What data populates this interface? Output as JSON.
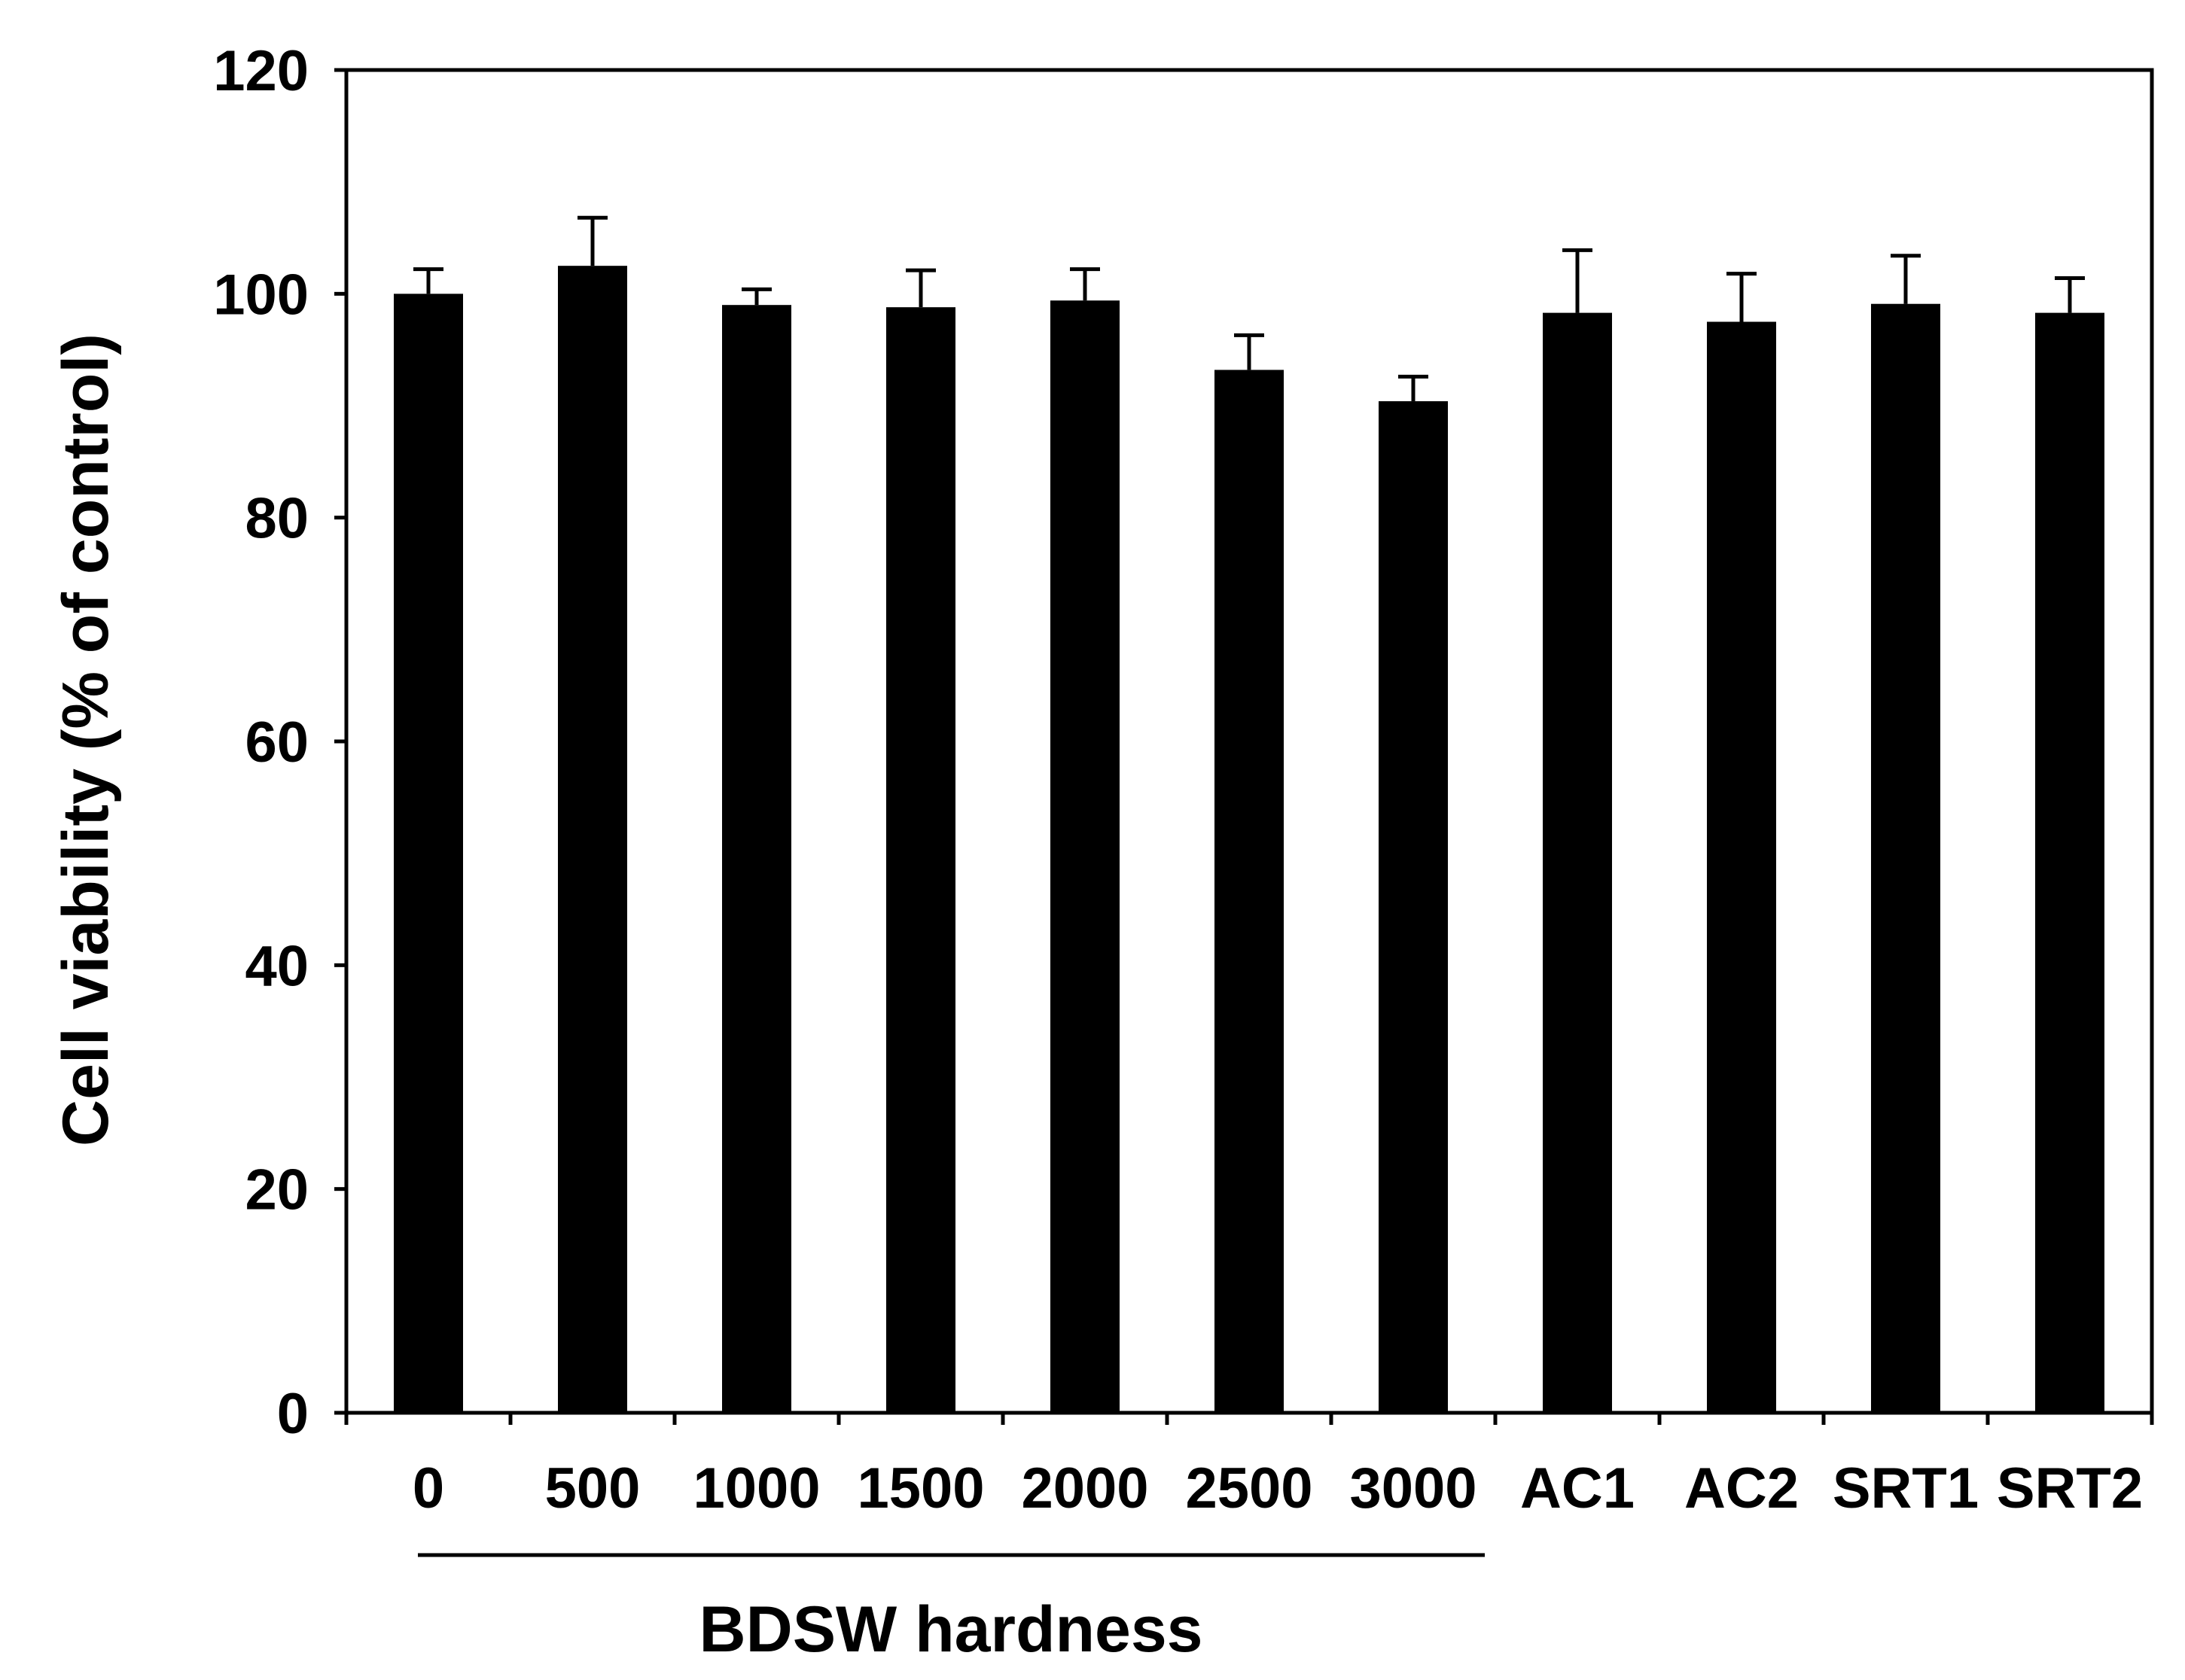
{
  "chart_data": {
    "type": "bar",
    "categories": [
      "0",
      "500",
      "1000",
      "1500",
      "2000",
      "2500",
      "3000",
      "AC1",
      "AC2",
      "SRT1",
      "SRT2"
    ],
    "values": [
      100,
      102.5,
      99,
      98.8,
      99.4,
      93.2,
      90.4,
      98.3,
      97.5,
      99.1,
      98.3
    ],
    "errors": [
      2.2,
      4.3,
      1.4,
      3.3,
      2.8,
      3.1,
      2.2,
      5.6,
      4.3,
      4.3,
      3.1
    ],
    "title": "",
    "xlabel": "BDSW hardness",
    "ylabel": "Cell viability (% of control)",
    "ylim": [
      0,
      120
    ],
    "yticks": [
      "0",
      "20",
      "40",
      "60",
      "80",
      "100",
      "120"
    ],
    "grid": false,
    "bar_color": "#000000"
  }
}
